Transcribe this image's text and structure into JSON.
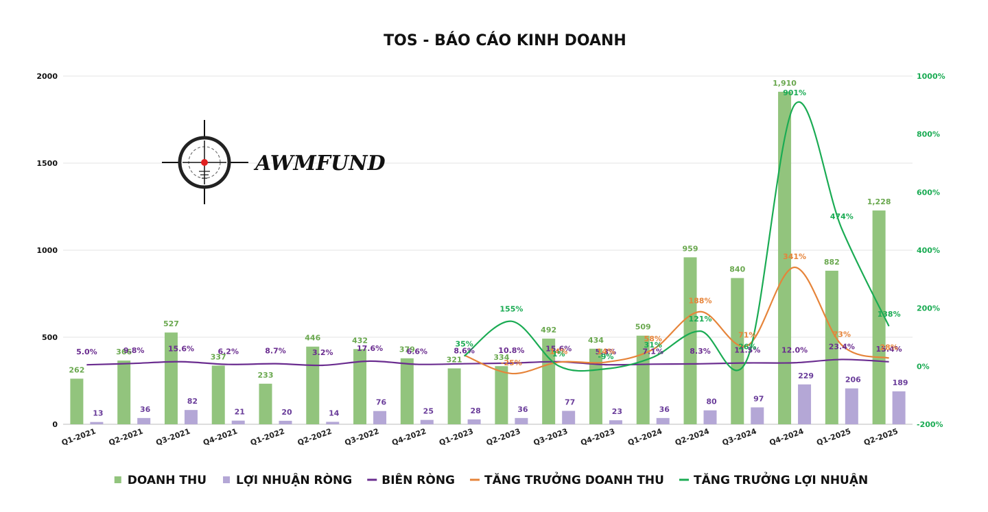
{
  "logo": {
    "text": "AWMFUND"
  },
  "colors": {
    "revenue": "#92c47d",
    "profit": "#b4a7d6",
    "margin": "#6a2c8f",
    "revenue_growth": "#e6843a",
    "profit_growth": "#1aab53",
    "revenue_label": "#6aa84f",
    "profit_label": "#6a3d9a",
    "right_axis": "#1aab53",
    "grid": "#e3e3e3"
  },
  "chart_data": {
    "type": "bar",
    "title": "TOS - BÁO CÁO KINH DOANH",
    "categories": [
      "Q1-2021",
      "Q2-2021",
      "Q3-2021",
      "Q4-2021",
      "Q1-2022",
      "Q2-2022",
      "Q3-2022",
      "Q4-2022",
      "Q1-2023",
      "Q2-2023",
      "Q3-2023",
      "Q4-2023",
      "Q1-2024",
      "Q2-2024",
      "Q3-2024",
      "Q4-2024",
      "Q1-2025",
      "Q2-2025"
    ],
    "left_axis": {
      "min": 0,
      "max": 2000,
      "ticks": [
        "0",
        "500",
        "1000",
        "1500",
        "2000"
      ]
    },
    "right_axis": {
      "min": -200,
      "max": 1000,
      "ticks": [
        "-200%",
        "0%",
        "200%",
        "400%",
        "600%",
        "800%",
        "1000%"
      ]
    },
    "series": [
      {
        "name": "DOANH THU",
        "kind": "bar",
        "axis": "left",
        "values": [
          262,
          366,
          527,
          337,
          233,
          446,
          432,
          379,
          321,
          334,
          492,
          434,
          509,
          959,
          840,
          1910,
          882,
          1228
        ],
        "labels": [
          "262",
          "366",
          "527",
          "337",
          "233",
          "446",
          "432",
          "379",
          "321",
          "334",
          "492",
          "434",
          "509",
          "959",
          "840",
          "1,910",
          "882",
          "1,228"
        ]
      },
      {
        "name": "LỢI NHUẬN RÒNG",
        "kind": "bar",
        "axis": "left",
        "values": [
          13,
          36,
          82,
          21,
          20,
          14,
          76,
          25,
          28,
          36,
          77,
          23,
          36,
          80,
          97,
          229,
          206,
          189
        ],
        "labels": [
          "13",
          "36",
          "82",
          "21",
          "20",
          "14",
          "76",
          "25",
          "28",
          "36",
          "77",
          "23",
          "36",
          "80",
          "97",
          "229",
          "206",
          "189"
        ]
      },
      {
        "name": "BIÊN RÒNG",
        "kind": "line",
        "axis": "right",
        "values": [
          5.0,
          9.8,
          15.6,
          6.2,
          8.7,
          3.2,
          17.6,
          6.6,
          8.6,
          10.8,
          15.6,
          5.3,
          7.1,
          8.3,
          11.5,
          12.0,
          23.4,
          15.4
        ],
        "labels": [
          "5.0%",
          "9.8%",
          "15.6%",
          "6.2%",
          "8.7%",
          "3.2%",
          "17.6%",
          "6.6%",
          "8.6%",
          "10.8%",
          "15.6%",
          "5.3%",
          "7.1%",
          "8.3%",
          "11.5%",
          "12.0%",
          "23.4%",
          "15.4%"
        ]
      },
      {
        "name": "TĂNG TRƯỞNG DOANH THU",
        "kind": "line",
        "axis": "right",
        "start_index": 8,
        "values": [
          null,
          null,
          null,
          null,
          null,
          null,
          null,
          null,
          38,
          -25,
          14,
          14,
          58,
          188,
          71,
          341,
          73,
          28
        ],
        "labels": [
          "",
          "",
          "",
          "",
          "",
          "",
          "",
          "",
          "",
          "-25%",
          "14%",
          "14%",
          "58%",
          "188%",
          "71%",
          "341%",
          "73%",
          "28%"
        ]
      },
      {
        "name": "TĂNG TRƯỞNG LỢI NHUẬN",
        "kind": "line",
        "axis": "right",
        "start_index": 8,
        "values": [
          null,
          null,
          null,
          null,
          null,
          null,
          null,
          null,
          35,
          155,
          1,
          -9,
          31,
          121,
          26,
          901,
          474,
          138
        ],
        "labels": [
          "",
          "",
          "",
          "",
          "",
          "",
          "",
          "",
          "35%",
          "155%",
          "1%",
          "-9%",
          "31%",
          "121%",
          "26%",
          "901%",
          "474%",
          "138%"
        ]
      }
    ],
    "grid": true,
    "legend_position": "bottom-center"
  }
}
